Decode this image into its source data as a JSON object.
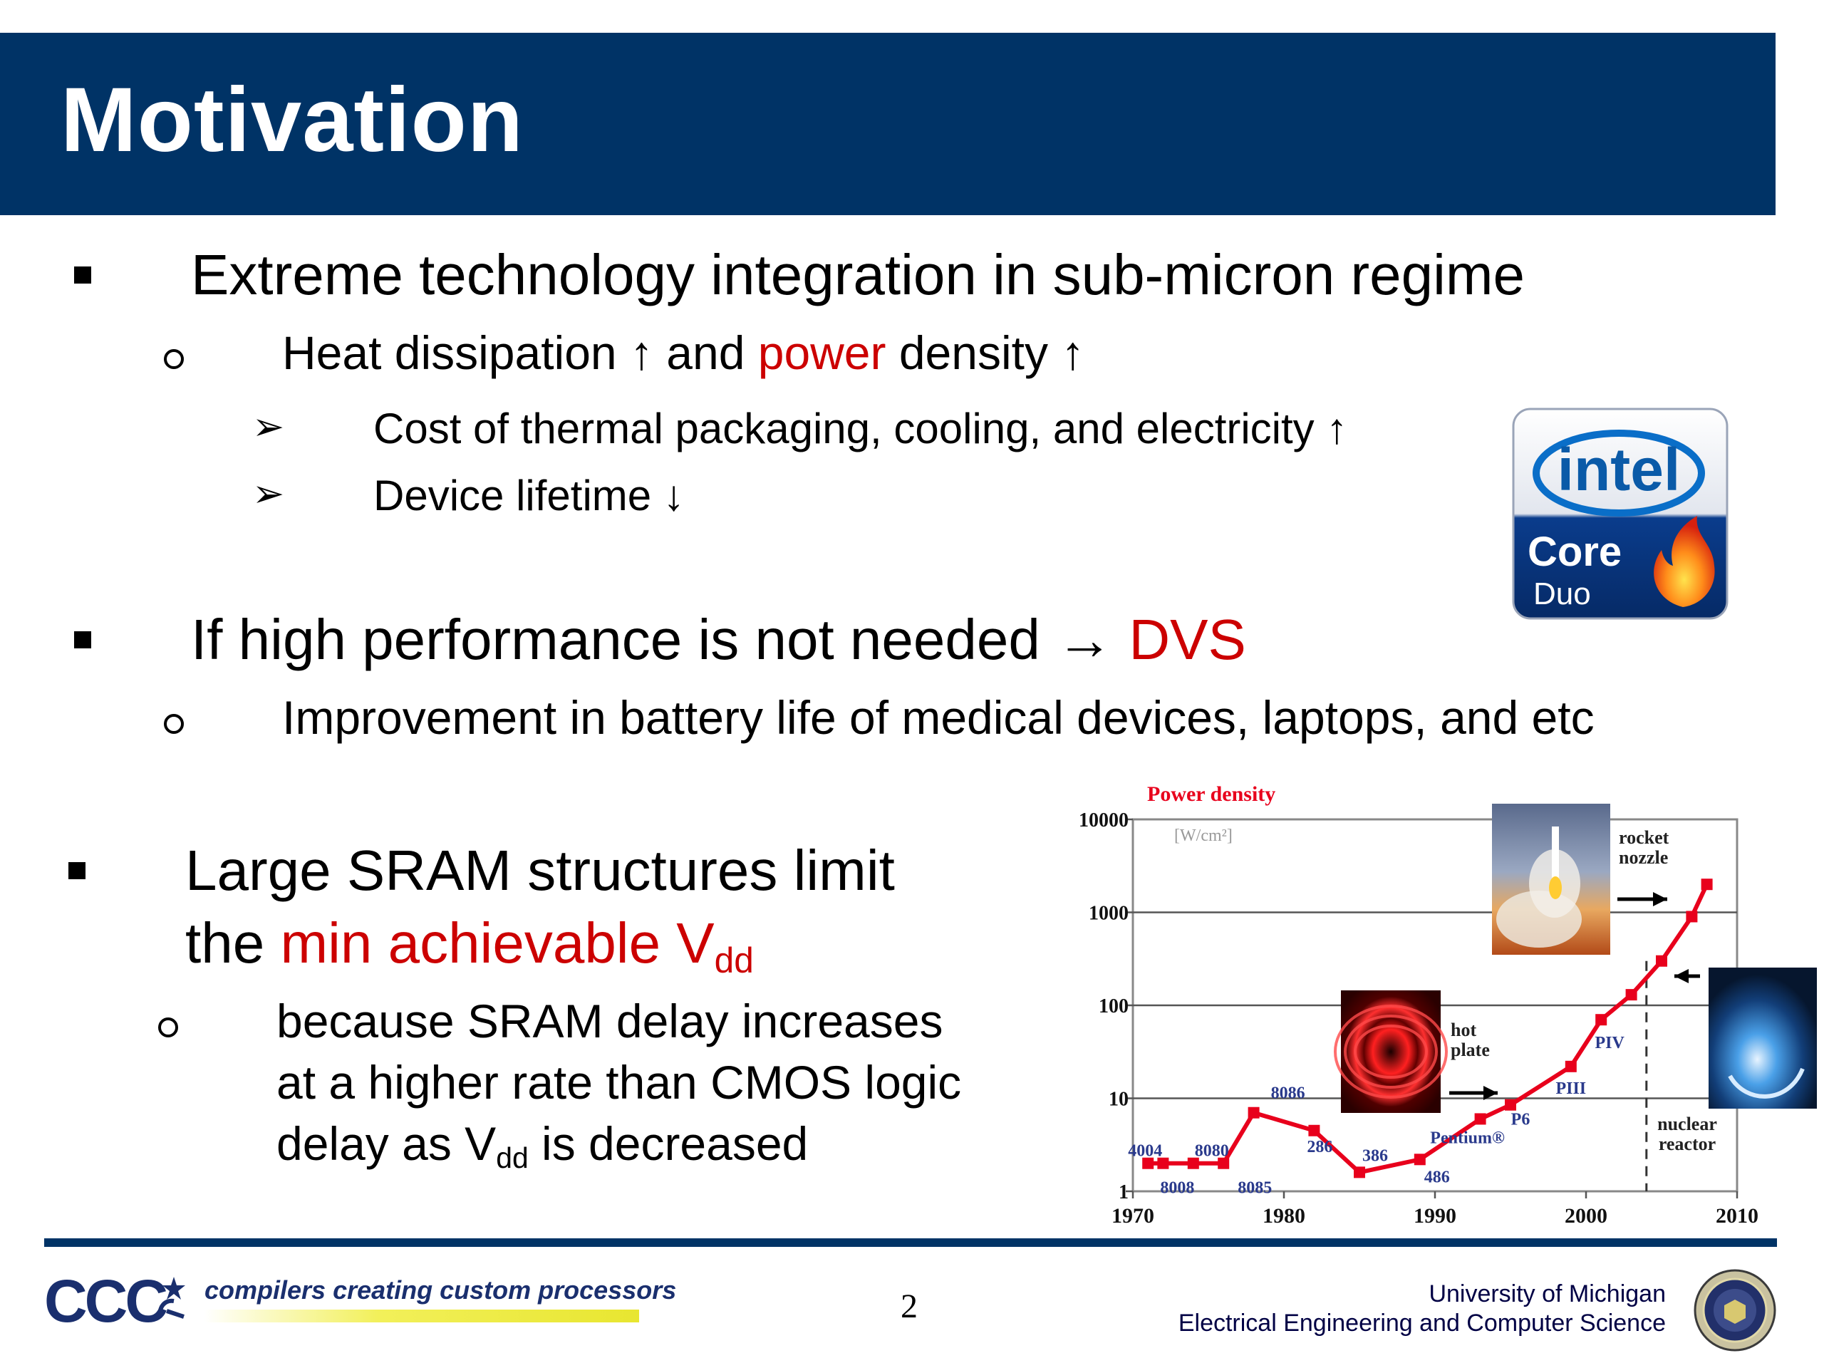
{
  "slide": {
    "title": "Motivation",
    "page_number": "2"
  },
  "bullets": {
    "b1": "Extreme technology integration in sub-micron regime",
    "b1_s1_a": "Heat dissipation ↑ and ",
    "b1_s1_red": "power",
    "b1_s1_b": " density ↑",
    "b1_s1_i1": "Cost of thermal packaging, cooling, and electricity ↑",
    "b1_s1_i2": "Device lifetime ↓",
    "b2_a": "If high performance is not needed ",
    "b2_arrow": "→",
    "b2_red": "DVS",
    "b2_s1": "Improvement in battery life of medical devices, laptops, and etc",
    "b3_l1": "Large SRAM structures limit",
    "b3_l2_a": "the ",
    "b3_l2_red": "min achievable V",
    "b3_l2_sub": "dd",
    "b3_s1_l1": "because SRAM delay increases",
    "b3_s1_l2": "at a higher rate than CMOS logic",
    "b3_s1_l3_a": "delay as V",
    "b3_s1_l3_sub": "dd",
    "b3_s1_l3_b": " is decreased"
  },
  "logo": {
    "brand": "intel",
    "product": "Core",
    "variant": "Duo",
    "flame_icon": "flame-icon"
  },
  "chart_data": {
    "type": "line",
    "title": "Power density",
    "ylabel": "[W/cm²]",
    "xlabel": "",
    "yscale": "log",
    "ylim": [
      1,
      10000
    ],
    "xlim": [
      1970,
      2010
    ],
    "x_ticks": [
      "1970",
      "1980",
      "1990",
      "2000",
      "2010"
    ],
    "y_ticks": [
      "1",
      "10",
      "100",
      "1000",
      "10000"
    ],
    "grid": true,
    "series": [
      {
        "name": "",
        "color": "#e8001c",
        "points": [
          {
            "x": 1971,
            "y": 2.0
          },
          {
            "x": 1972,
            "y": 2.0
          },
          {
            "x": 1974,
            "y": 2.0
          },
          {
            "x": 1976,
            "y": 2.0
          },
          {
            "x": 1978,
            "y": 7.0
          },
          {
            "x": 1982,
            "y": 4.5
          },
          {
            "x": 1985,
            "y": 1.6
          },
          {
            "x": 1989,
            "y": 2.2
          },
          {
            "x": 1993,
            "y": 6.0
          },
          {
            "x": 1995,
            "y": 8.5
          },
          {
            "x": 1999,
            "y": 22
          },
          {
            "x": 2001,
            "y": 70
          },
          {
            "x": 2003,
            "y": 130
          },
          {
            "x": 2005,
            "y": 300
          },
          {
            "x": 2007,
            "y": 900
          },
          {
            "x": 2008,
            "y": 2000
          }
        ],
        "extrapolated_from": 2003
      }
    ],
    "point_labels": [
      {
        "text": "4004",
        "x": 1971,
        "y": 2.0
      },
      {
        "text": "8008",
        "x": 1972,
        "y": 2.0
      },
      {
        "text": "8080",
        "x": 1974,
        "y": 2.0
      },
      {
        "text": "8085",
        "x": 1976,
        "y": 2.0
      },
      {
        "text": "8086",
        "x": 1978,
        "y": 7.0
      },
      {
        "text": "286",
        "x": 1982,
        "y": 4.5
      },
      {
        "text": "386",
        "x": 1985,
        "y": 1.6
      },
      {
        "text": "486",
        "x": 1989,
        "y": 2.2
      },
      {
        "text": "Pentium®",
        "x": 1993,
        "y": 6.0
      },
      {
        "text": "P6",
        "x": 1995,
        "y": 8.5
      },
      {
        "text": "PIII",
        "x": 1999,
        "y": 22
      },
      {
        "text": "PIV",
        "x": 2001,
        "y": 70
      }
    ],
    "annotations": [
      {
        "text": "hot plate",
        "x": 1993,
        "y": 10
      },
      {
        "text": "nuclear reactor",
        "x": 2005,
        "y": 100
      },
      {
        "text": "rocket nozzle",
        "x": 2008,
        "y": 1000
      }
    ]
  },
  "footer": {
    "ccc_logo": "CCC",
    "tagline": "compilers creating custom processors",
    "university": "University of Michigan",
    "department": "Electrical Engineering and Computer Science"
  }
}
